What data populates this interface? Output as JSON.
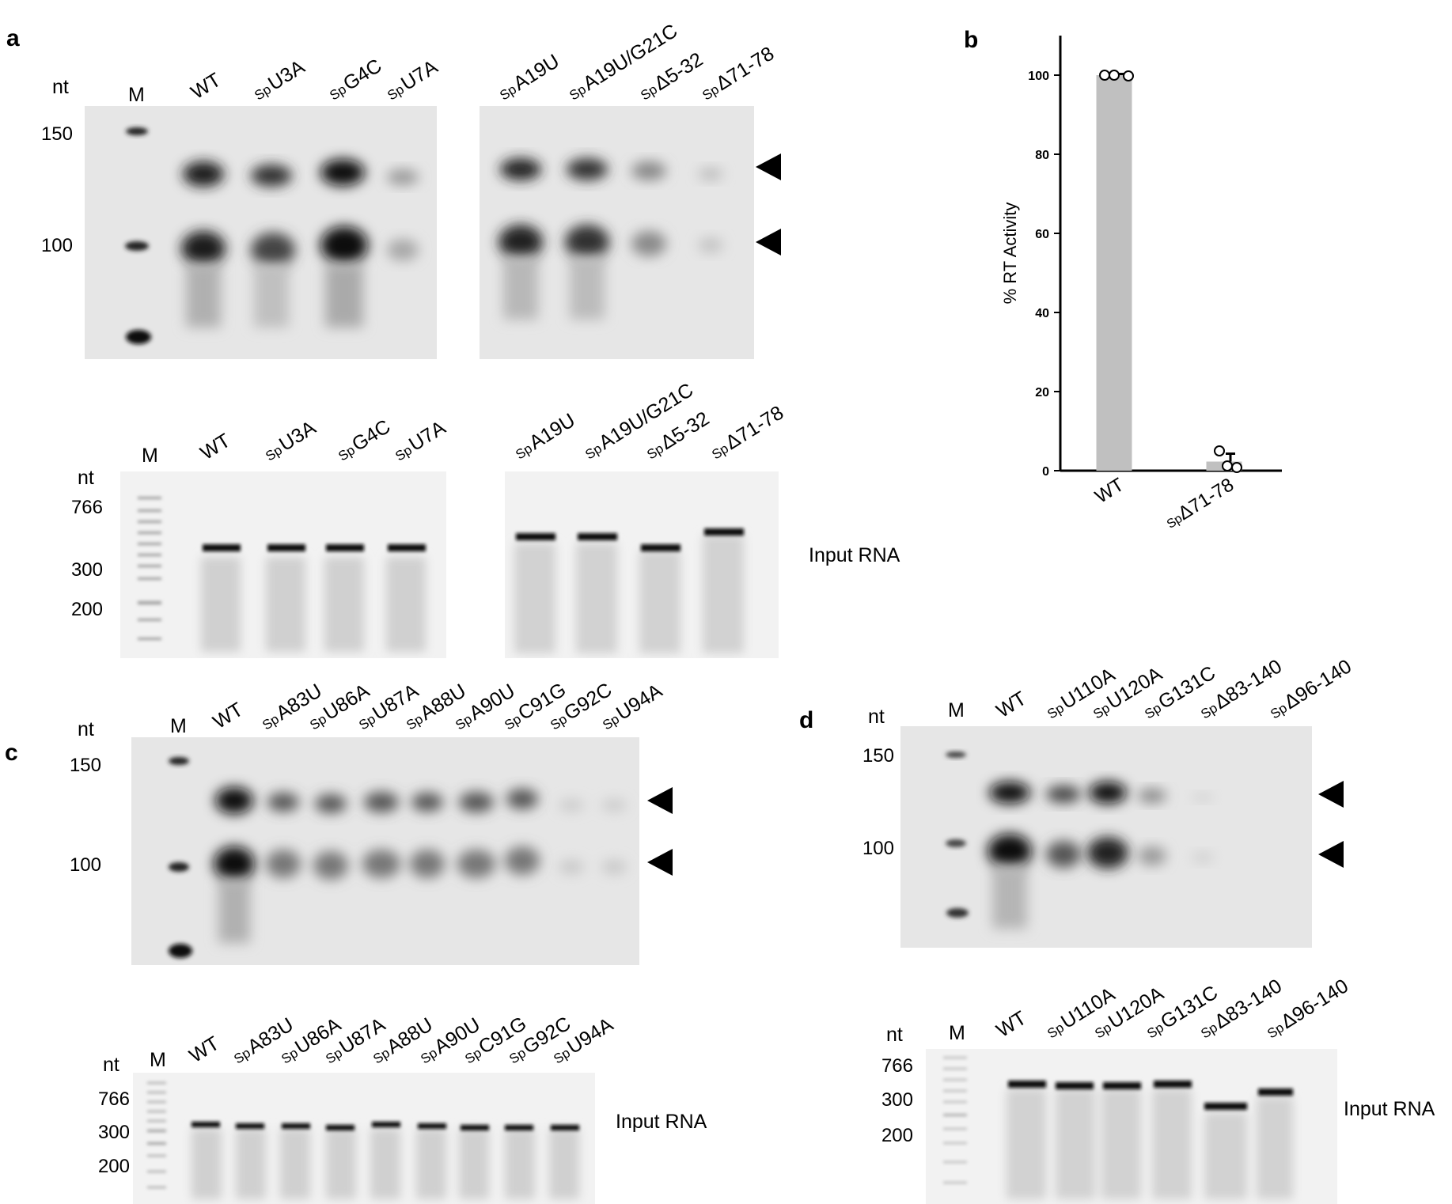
{
  "panel_a": {
    "label": "a",
    "nt": "nt",
    "M": "M",
    "markers": [
      "150",
      "100"
    ],
    "lanes_left": [
      {
        "sp": "",
        "name": "WT"
      },
      {
        "sp": "Sp",
        "name": "U3A"
      },
      {
        "sp": "Sp",
        "name": "G4C"
      },
      {
        "sp": "Sp",
        "name": "U7A"
      }
    ],
    "lanes_right": [
      {
        "sp": "Sp",
        "name": "A19U"
      },
      {
        "sp": "Sp",
        "name": "A19U/G21C"
      },
      {
        "sp": "Sp",
        "name": "Δ5-32"
      },
      {
        "sp": "Sp",
        "name": "Δ71-78"
      }
    ],
    "input": {
      "nt": "nt",
      "M": "M",
      "markers": [
        "766",
        "300",
        "200"
      ],
      "label": "Input RNA"
    }
  },
  "panel_b": {
    "label": "b",
    "chart_data": {
      "type": "bar",
      "categories": [
        "WT",
        "SpΔ71-78"
      ],
      "category_display": [
        {
          "sp": "",
          "name": "WT"
        },
        {
          "sp": "Sp",
          "name": "Δ71-78"
        }
      ],
      "values": [
        100,
        2.3
      ],
      "error": [
        0.3,
        2.0
      ],
      "points": [
        [
          100,
          100,
          99.8
        ],
        [
          5,
          1.2,
          0.8
        ]
      ],
      "ylabel": "% RT Activity",
      "ylim": [
        0,
        110
      ],
      "yticks": [
        "0",
        "20",
        "40",
        "60",
        "80",
        "100"
      ],
      "bar_color": "#c0c0c0"
    }
  },
  "panel_c": {
    "label": "c",
    "nt": "nt",
    "M": "M",
    "markers": [
      "150",
      "100"
    ],
    "lanes": [
      {
        "sp": "",
        "name": "WT"
      },
      {
        "sp": "Sp",
        "name": "A83U"
      },
      {
        "sp": "Sp",
        "name": "U86A"
      },
      {
        "sp": "Sp",
        "name": "U87A"
      },
      {
        "sp": "Sp",
        "name": "A88U"
      },
      {
        "sp": "Sp",
        "name": "A90U"
      },
      {
        "sp": "Sp",
        "name": "C91G"
      },
      {
        "sp": "Sp",
        "name": "G92C"
      },
      {
        "sp": "Sp",
        "name": "U94A"
      }
    ],
    "input": {
      "nt": "nt",
      "M": "M",
      "markers": [
        "766",
        "300",
        "200"
      ],
      "label": "Input RNA"
    }
  },
  "panel_d": {
    "label": "d",
    "nt": "nt",
    "M": "M",
    "markers": [
      "150",
      "100"
    ],
    "lanes": [
      {
        "sp": "",
        "name": "WT"
      },
      {
        "sp": "Sp",
        "name": "U110A"
      },
      {
        "sp": "Sp",
        "name": "U120A"
      },
      {
        "sp": "Sp",
        "name": "G131C"
      },
      {
        "sp": "Sp",
        "name": "Δ83-140"
      },
      {
        "sp": "Sp",
        "name": "Δ96-140"
      }
    ],
    "input": {
      "nt": "nt",
      "M": "M",
      "markers": [
        "766",
        "300",
        "200"
      ],
      "label": "Input RNA"
    }
  }
}
